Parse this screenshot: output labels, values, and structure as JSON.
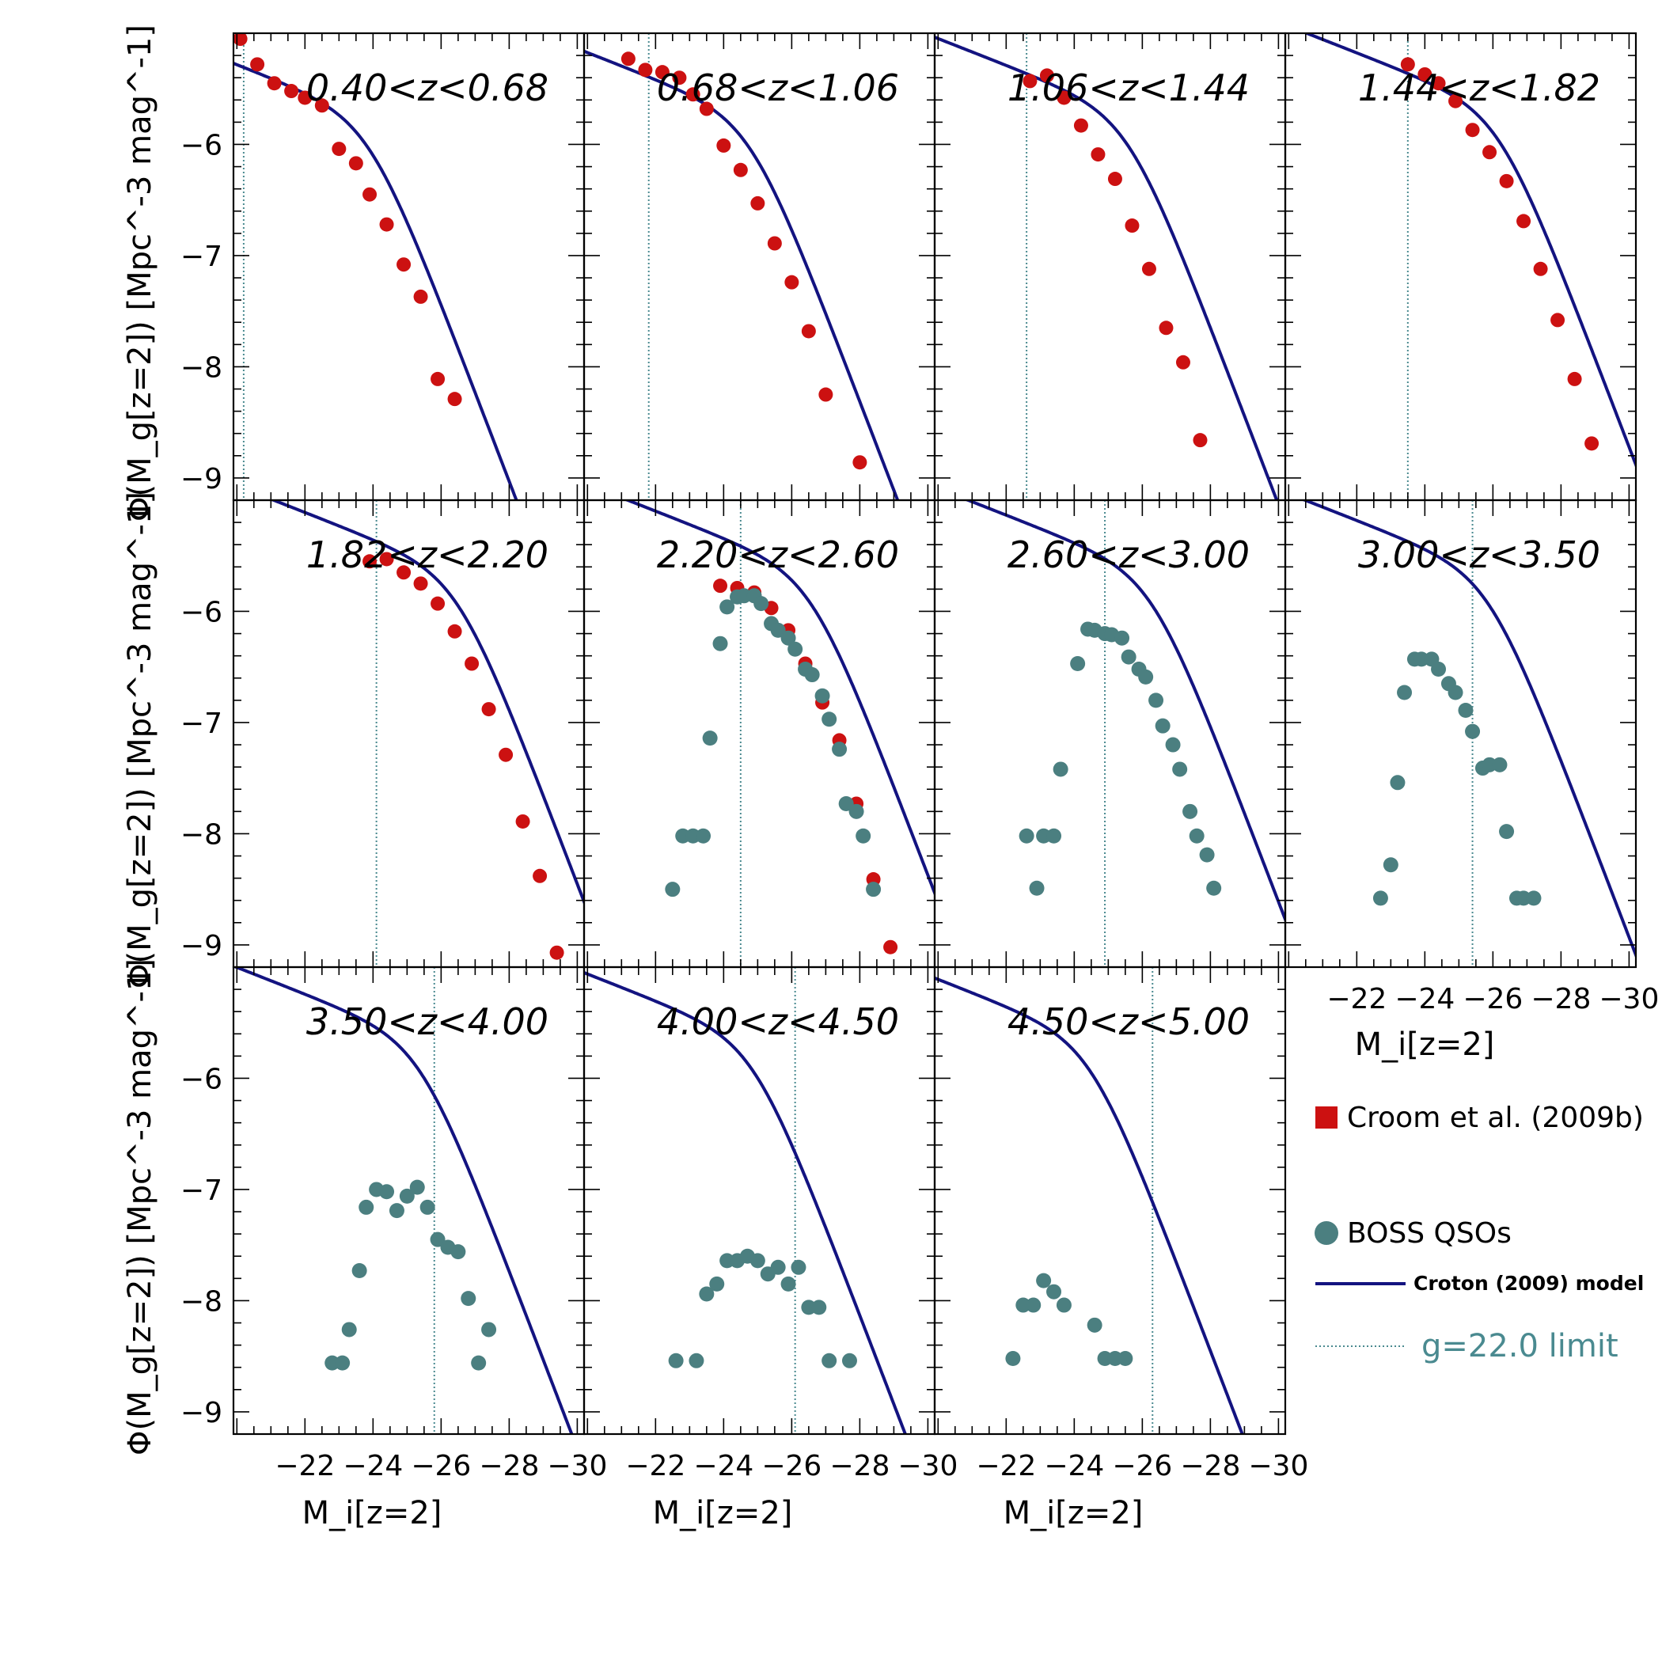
{
  "chart_data": {
    "type": "scatter",
    "xlabel": "M_i[z=2]",
    "ylabel": "Φ(M_g[z=2]) [Mpc^-3 mag^-1]",
    "xlim": [
      -19.9,
      -30.2
    ],
    "ylim": [
      -9.2,
      -5.0
    ],
    "xticks": [
      -22,
      -24,
      -26,
      -28,
      -30
    ],
    "yticks": [
      -6,
      -7,
      -8,
      -9
    ],
    "colors": {
      "croom": "#cc1111",
      "boss": "#4b7f80",
      "model": "#131380",
      "limit": "#4a8a90"
    },
    "legend": {
      "croom": "Croom et al. (2009b)",
      "boss": "BOSS QSOs",
      "model": "Croton (2009) model",
      "limit": "g=22.0 limit"
    },
    "panels": [
      {
        "title": "0.40<z<0.68",
        "limit": -20.2,
        "model": {
          "phi_star": -5.75,
          "m_star": -23.9,
          "alpha": -1.3,
          "beta": -3.0
        },
        "croom": [
          [
            -20.1,
            -5.05
          ],
          [
            -20.6,
            -5.28
          ],
          [
            -21.1,
            -5.45
          ],
          [
            -21.6,
            -5.52
          ],
          [
            -22.0,
            -5.58
          ],
          [
            -22.5,
            -5.65
          ],
          [
            -23.0,
            -6.04
          ],
          [
            -23.5,
            -6.17
          ],
          [
            -23.9,
            -6.45
          ],
          [
            -24.4,
            -6.72
          ],
          [
            -24.9,
            -7.08
          ],
          [
            -25.4,
            -7.37
          ],
          [
            -25.9,
            -8.11
          ],
          [
            -26.4,
            -8.29
          ]
        ],
        "boss": []
      },
      {
        "title": "0.68<z<1.06",
        "limit": -21.8,
        "model": {
          "phi_star": -5.75,
          "m_star": -24.8,
          "alpha": -1.3,
          "beta": -3.0
        },
        "croom": [
          [
            -21.2,
            -5.23
          ],
          [
            -21.7,
            -5.33
          ],
          [
            -22.2,
            -5.35
          ],
          [
            -22.7,
            -5.4
          ],
          [
            -23.1,
            -5.55
          ],
          [
            -23.5,
            -5.68
          ],
          [
            -24.0,
            -6.01
          ],
          [
            -24.5,
            -6.23
          ],
          [
            -25.0,
            -6.53
          ],
          [
            -25.5,
            -6.89
          ],
          [
            -26.0,
            -7.24
          ],
          [
            -26.5,
            -7.68
          ],
          [
            -27.0,
            -8.25
          ],
          [
            -28.0,
            -8.86
          ]
        ],
        "boss": []
      },
      {
        "title": "1.06<z<1.44",
        "limit": -22.6,
        "model": {
          "phi_star": -5.72,
          "m_star": -25.6,
          "alpha": -1.3,
          "beta": -3.0
        },
        "croom": [
          [
            -22.7,
            -5.43
          ],
          [
            -23.2,
            -5.38
          ],
          [
            -23.7,
            -5.58
          ],
          [
            -24.2,
            -5.83
          ],
          [
            -24.7,
            -6.09
          ],
          [
            -25.2,
            -6.31
          ],
          [
            -25.7,
            -6.73
          ],
          [
            -26.2,
            -7.12
          ],
          [
            -26.7,
            -7.65
          ],
          [
            -27.2,
            -7.96
          ],
          [
            -27.7,
            -8.66
          ]
        ],
        "boss": []
      },
      {
        "title": "1.44<z<1.82",
        "limit": -23.5,
        "model": {
          "phi_star": -5.68,
          "m_star": -26.2,
          "alpha": -1.3,
          "beta": -3.0
        },
        "croom": [
          [
            -23.5,
            -5.28
          ],
          [
            -24.0,
            -5.37
          ],
          [
            -24.4,
            -5.45
          ],
          [
            -24.9,
            -5.61
          ],
          [
            -25.4,
            -5.87
          ],
          [
            -25.9,
            -6.07
          ],
          [
            -26.4,
            -6.33
          ],
          [
            -26.9,
            -6.69
          ],
          [
            -27.4,
            -7.12
          ],
          [
            -27.9,
            -7.58
          ],
          [
            -28.4,
            -8.11
          ],
          [
            -28.9,
            -8.69
          ]
        ],
        "boss": []
      },
      {
        "title": "1.82<z<2.20",
        "limit": -24.1,
        "model": {
          "phi_star": -5.65,
          "m_star": -26.5,
          "alpha": -1.3,
          "beta": -3.0
        },
        "croom": [
          [
            -23.9,
            -5.55
          ],
          [
            -24.4,
            -5.53
          ],
          [
            -24.9,
            -5.65
          ],
          [
            -25.4,
            -5.75
          ],
          [
            -25.9,
            -5.93
          ],
          [
            -26.4,
            -6.18
          ],
          [
            -26.9,
            -6.47
          ],
          [
            -27.4,
            -6.88
          ],
          [
            -27.9,
            -7.29
          ],
          [
            -28.4,
            -7.89
          ],
          [
            -28.9,
            -8.38
          ],
          [
            -29.4,
            -9.07
          ]
        ],
        "boss": []
      },
      {
        "title": "2.20<z<2.60",
        "limit": -24.5,
        "model": {
          "phi_star": -5.65,
          "m_star": -26.6,
          "alpha": -1.3,
          "beta": -3.0
        },
        "croom": [
          [
            -23.9,
            -5.77
          ],
          [
            -24.4,
            -5.79
          ],
          [
            -24.9,
            -5.83
          ],
          [
            -25.4,
            -5.97
          ],
          [
            -25.9,
            -6.17
          ],
          [
            -26.4,
            -6.47
          ],
          [
            -26.9,
            -6.82
          ],
          [
            -27.4,
            -7.16
          ],
          [
            -27.9,
            -7.73
          ],
          [
            -28.4,
            -8.41
          ],
          [
            -28.9,
            -9.02
          ]
        ],
        "boss": [
          [
            -22.5,
            -8.5
          ],
          [
            -22.8,
            -8.02
          ],
          [
            -23.1,
            -8.02
          ],
          [
            -23.4,
            -8.02
          ],
          [
            -23.6,
            -7.14
          ],
          [
            -23.9,
            -6.29
          ],
          [
            -24.1,
            -5.96
          ],
          [
            -24.4,
            -5.87
          ],
          [
            -24.6,
            -5.86
          ],
          [
            -24.9,
            -5.86
          ],
          [
            -25.1,
            -5.93
          ],
          [
            -25.4,
            -6.11
          ],
          [
            -25.6,
            -6.17
          ],
          [
            -25.9,
            -6.24
          ],
          [
            -26.1,
            -6.34
          ],
          [
            -26.4,
            -6.52
          ],
          [
            -26.6,
            -6.57
          ],
          [
            -26.9,
            -6.76
          ],
          [
            -27.1,
            -6.97
          ],
          [
            -27.4,
            -7.24
          ],
          [
            -27.6,
            -7.73
          ],
          [
            -27.9,
            -7.8
          ],
          [
            -28.1,
            -8.02
          ],
          [
            -28.4,
            -8.5
          ]
        ]
      },
      {
        "title": "2.60<z<3.00",
        "limit": -24.9,
        "model": {
          "phi_star": -5.65,
          "m_star": -26.3,
          "alpha": -1.3,
          "beta": -3.0
        },
        "croom": [],
        "boss": [
          [
            -22.6,
            -8.02
          ],
          [
            -22.9,
            -8.49
          ],
          [
            -23.1,
            -8.02
          ],
          [
            -23.4,
            -8.02
          ],
          [
            -23.6,
            -7.42
          ],
          [
            -24.1,
            -6.47
          ],
          [
            -24.4,
            -6.16
          ],
          [
            -24.6,
            -6.17
          ],
          [
            -24.9,
            -6.2
          ],
          [
            -25.1,
            -6.21
          ],
          [
            -25.4,
            -6.24
          ],
          [
            -25.6,
            -6.41
          ],
          [
            -25.9,
            -6.52
          ],
          [
            -26.1,
            -6.59
          ],
          [
            -26.4,
            -6.8
          ],
          [
            -26.6,
            -7.03
          ],
          [
            -26.9,
            -7.2
          ],
          [
            -27.1,
            -7.42
          ],
          [
            -27.4,
            -7.8
          ],
          [
            -27.6,
            -8.02
          ],
          [
            -27.9,
            -8.19
          ],
          [
            -28.1,
            -8.49
          ]
        ]
      },
      {
        "title": "3.00<z<3.50",
        "limit": -25.4,
        "model": {
          "phi_star": -5.65,
          "m_star": -25.9,
          "alpha": -1.3,
          "beta": -3.0
        },
        "croom": [],
        "boss": [
          [
            -22.7,
            -8.58
          ],
          [
            -23.0,
            -8.28
          ],
          [
            -23.2,
            -7.54
          ],
          [
            -23.4,
            -6.73
          ],
          [
            -23.7,
            -6.43
          ],
          [
            -23.9,
            -6.43
          ],
          [
            -24.2,
            -6.43
          ],
          [
            -24.4,
            -6.52
          ],
          [
            -24.7,
            -6.65
          ],
          [
            -24.9,
            -6.73
          ],
          [
            -25.2,
            -6.89
          ],
          [
            -25.4,
            -7.08
          ],
          [
            -25.7,
            -7.41
          ],
          [
            -25.9,
            -7.38
          ],
          [
            -26.2,
            -7.38
          ],
          [
            -26.4,
            -7.98
          ],
          [
            -26.7,
            -8.58
          ],
          [
            -26.9,
            -8.58
          ],
          [
            -27.2,
            -8.58
          ]
        ]
      },
      {
        "title": "3.50<z<4.00",
        "limit": -25.8,
        "model": {
          "phi_star": -5.65,
          "m_star": -25.4,
          "alpha": -1.3,
          "beta": -3.0
        },
        "croom": [],
        "boss": [
          [
            -22.8,
            -8.56
          ],
          [
            -23.1,
            -8.56
          ],
          [
            -23.3,
            -8.26
          ],
          [
            -23.6,
            -7.73
          ],
          [
            -23.8,
            -7.16
          ],
          [
            -24.1,
            -7.0
          ],
          [
            -24.4,
            -7.02
          ],
          [
            -24.7,
            -7.19
          ],
          [
            -25.0,
            -7.06
          ],
          [
            -25.3,
            -6.98
          ],
          [
            -25.6,
            -7.16
          ],
          [
            -25.9,
            -7.45
          ],
          [
            -26.2,
            -7.52
          ],
          [
            -26.5,
            -7.56
          ],
          [
            -26.8,
            -7.98
          ],
          [
            -27.1,
            -8.56
          ],
          [
            -27.4,
            -8.26
          ]
        ]
      },
      {
        "title": "4.00<z<4.50",
        "limit": -26.1,
        "model": {
          "phi_star": -5.65,
          "m_star": -24.9,
          "alpha": -1.3,
          "beta": -3.0
        },
        "croom": [],
        "boss": [
          [
            -22.6,
            -8.54
          ],
          [
            -23.2,
            -8.54
          ],
          [
            -23.5,
            -7.94
          ],
          [
            -23.8,
            -7.85
          ],
          [
            -24.1,
            -7.64
          ],
          [
            -24.4,
            -7.64
          ],
          [
            -24.7,
            -7.6
          ],
          [
            -25.0,
            -7.64
          ],
          [
            -25.3,
            -7.76
          ],
          [
            -25.6,
            -7.7
          ],
          [
            -25.9,
            -7.85
          ],
          [
            -26.2,
            -7.7
          ],
          [
            -26.5,
            -8.06
          ],
          [
            -26.8,
            -8.06
          ],
          [
            -27.1,
            -8.54
          ],
          [
            -27.7,
            -8.54
          ]
        ]
      },
      {
        "title": "4.50<z<5.00",
        "limit": -26.3,
        "model": {
          "phi_star": -5.65,
          "m_star": -24.5,
          "alpha": -1.3,
          "beta": -3.0
        },
        "croom": [],
        "boss": [
          [
            -22.2,
            -8.52
          ],
          [
            -22.5,
            -8.04
          ],
          [
            -22.8,
            -8.04
          ],
          [
            -23.1,
            -7.82
          ],
          [
            -23.4,
            -7.92
          ],
          [
            -23.7,
            -8.04
          ],
          [
            -24.6,
            -8.22
          ],
          [
            -24.9,
            -8.52
          ],
          [
            -25.2,
            -8.52
          ],
          [
            -25.5,
            -8.52
          ]
        ]
      }
    ]
  }
}
